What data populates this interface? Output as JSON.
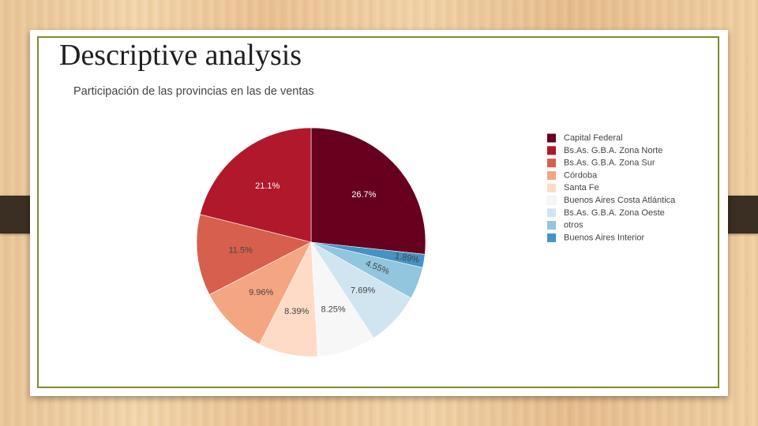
{
  "slide": {
    "title": "Descriptive analysis"
  },
  "chart_data": {
    "type": "pie",
    "title": "Participación de las provincias en las de ventas",
    "legend_position": "right",
    "slices": [
      {
        "label": "Capital Federal",
        "value": 26.7,
        "display": "26.7%",
        "color": "#67001f",
        "text_color": "#ffffff"
      },
      {
        "label": "Buenos Aires Interior",
        "value": 1.89,
        "display": "1.89%",
        "color": "#4393c3",
        "text_color": "#444444"
      },
      {
        "label": "otros",
        "value": 4.55,
        "display": "4.55%",
        "color": "#92c5de",
        "text_color": "#444444"
      },
      {
        "label": "Bs.As. G.B.A. Zona Oeste",
        "value": 7.69,
        "display": "7.69%",
        "color": "#d1e5f0",
        "text_color": "#444444"
      },
      {
        "label": "Buenos Aires Costa Atlántica",
        "value": 8.25,
        "display": "8.25%",
        "color": "#f7f7f7",
        "text_color": "#444444"
      },
      {
        "label": "Santa Fe",
        "value": 8.39,
        "display": "8.39%",
        "color": "#fddbc7",
        "text_color": "#444444"
      },
      {
        "label": "Córdoba",
        "value": 9.96,
        "display": "9.96%",
        "color": "#f4a582",
        "text_color": "#444444"
      },
      {
        "label": "Bs.As. G.B.A. Zona Sur",
        "value": 11.5,
        "display": "11.5%",
        "color": "#d6604d",
        "text_color": "#444444"
      },
      {
        "label": "Bs.As. G.B.A. Zona Norte",
        "value": 21.1,
        "display": "21.1%",
        "color": "#b2182b",
        "text_color": "#ffffff"
      }
    ],
    "legend": [
      {
        "label": "Capital Federal",
        "color": "#67001f"
      },
      {
        "label": "Bs.As. G.B.A. Zona Norte",
        "color": "#b2182b"
      },
      {
        "label": "Bs.As. G.B.A. Zona Sur",
        "color": "#d6604d"
      },
      {
        "label": "Córdoba",
        "color": "#f4a582"
      },
      {
        "label": "Santa Fe",
        "color": "#fddbc7"
      },
      {
        "label": "Buenos Aires Costa Atlántica",
        "color": "#f7f7f7"
      },
      {
        "label": "Bs.As. G.B.A. Zona Oeste",
        "color": "#d1e5f0"
      },
      {
        "label": "otros",
        "color": "#92c5de"
      },
      {
        "label": "Buenos Aires Interior",
        "color": "#4393c3"
      }
    ]
  }
}
